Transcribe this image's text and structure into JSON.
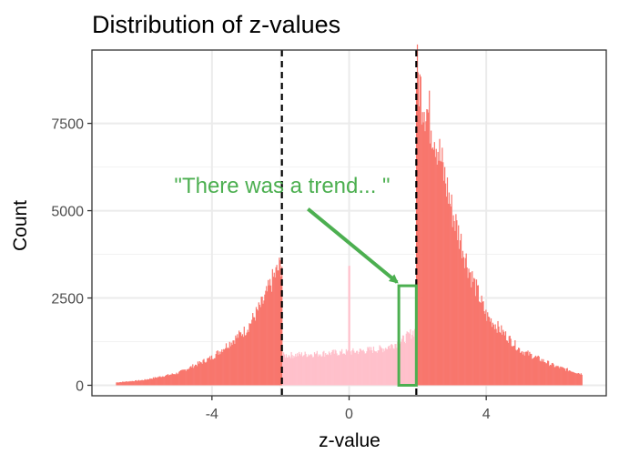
{
  "chart_data": {
    "type": "bar",
    "title": "Distribution of z-values",
    "xlabel": "z-value",
    "ylabel": "Count",
    "xlim": [
      -7.5,
      7.5
    ],
    "ylim": [
      -300,
      9600
    ],
    "xticks": [
      -4,
      0,
      4
    ],
    "xtick_labels": [
      "-4",
      "0",
      "4"
    ],
    "yticks": [
      0,
      2500,
      5000,
      7500
    ],
    "ytick_labels": [
      "0",
      "2500",
      "5000",
      "7500"
    ],
    "grid": true,
    "thresholds": [
      -1.96,
      1.96
    ],
    "series": [
      {
        "color": "#f8766d",
        "region": "|z| > 1.96",
        "x_range": [
          -6.8,
          6.8
        ],
        "profile": [
          {
            "x": -6.8,
            "y": 80
          },
          {
            "x": -6.0,
            "y": 150
          },
          {
            "x": -5.0,
            "y": 350
          },
          {
            "x": -4.0,
            "y": 800
          },
          {
            "x": -3.0,
            "y": 1600
          },
          {
            "x": -2.5,
            "y": 2400
          },
          {
            "x": -2.2,
            "y": 3100
          },
          {
            "x": -1.96,
            "y": 3500
          },
          {
            "x": 1.96,
            "y": 9000
          },
          {
            "x": 2.1,
            "y": 8400
          },
          {
            "x": 2.5,
            "y": 7200
          },
          {
            "x": 3.0,
            "y": 5000
          },
          {
            "x": 3.5,
            "y": 3300
          },
          {
            "x": 4.0,
            "y": 2000
          },
          {
            "x": 5.0,
            "y": 1000
          },
          {
            "x": 6.0,
            "y": 550
          },
          {
            "x": 6.8,
            "y": 320
          }
        ]
      },
      {
        "color": "#ffc0cb",
        "region": "|z| <= 1.96",
        "profile": [
          {
            "x": -1.96,
            "y": 850
          },
          {
            "x": -1.0,
            "y": 900
          },
          {
            "x": 0.0,
            "y": 950
          },
          {
            "x": 1.0,
            "y": 1050
          },
          {
            "x": 1.5,
            "y": 1250
          },
          {
            "x": 1.96,
            "y": 1600
          }
        ]
      }
    ],
    "annotation": {
      "text": "\"There was a trend... \"",
      "color": "#4caf50",
      "arrow_from": {
        "x": -1.2,
        "y": 5050
      },
      "arrow_to": {
        "x": 1.4,
        "y": 2950
      },
      "highlight_box": {
        "x0": 1.45,
        "x1": 1.96,
        "y0": 0,
        "y1": 2850
      }
    }
  }
}
